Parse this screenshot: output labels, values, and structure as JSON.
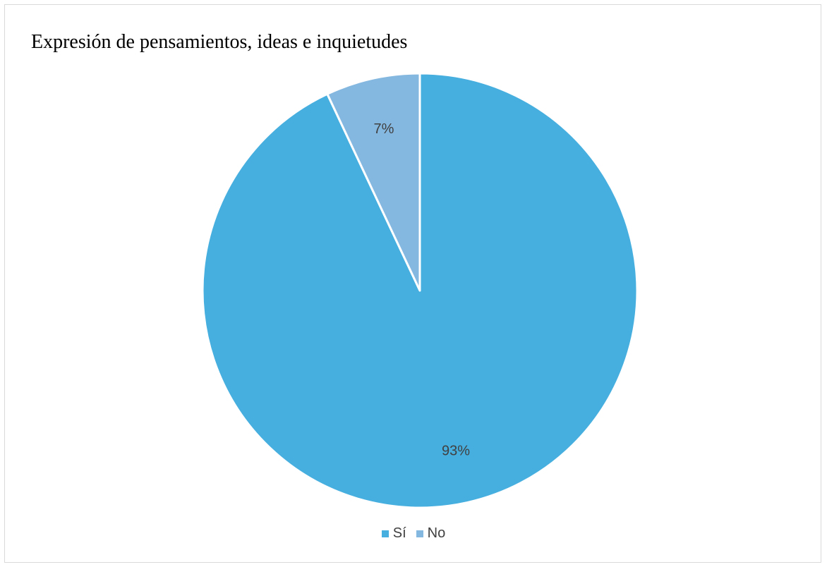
{
  "chart_data": {
    "type": "pie",
    "title": "Expresión de pensamientos, ideas e inquietudes",
    "categories": [
      "Sí",
      "No"
    ],
    "values": [
      93,
      7
    ],
    "labels": [
      "93%",
      "7%"
    ],
    "colors": [
      "#47AFDF",
      "#85B8E0"
    ],
    "legend_position": "bottom"
  }
}
